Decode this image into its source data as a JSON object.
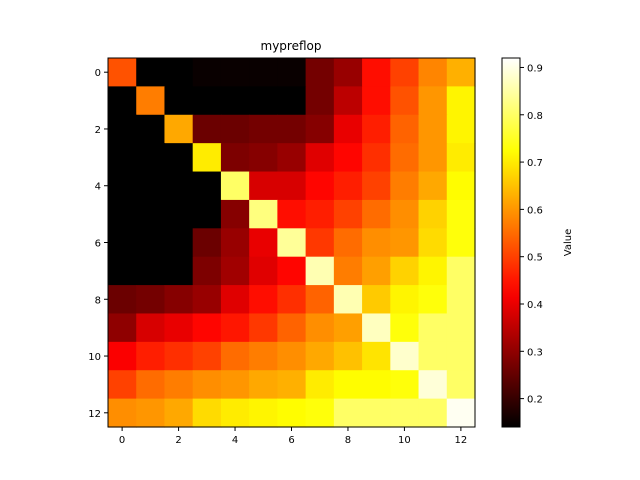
{
  "chart_data": {
    "type": "heatmap",
    "title": "mypreflop",
    "colormap": "hot",
    "colorbar_label": "Value",
    "vmin": 0.14,
    "vmax": 0.92,
    "colorbar_ticks": [
      0.2,
      0.3,
      0.4,
      0.5,
      0.6,
      0.7,
      0.8,
      0.9
    ],
    "colorbar_tick_labels": [
      "0.2",
      "0.3",
      "0.4",
      "0.5",
      "0.6",
      "0.7",
      "0.8",
      "0.9"
    ],
    "x_ticks": [
      0,
      2,
      4,
      6,
      8,
      10,
      12
    ],
    "x_tick_labels": [
      "0",
      "2",
      "4",
      "6",
      "8",
      "10",
      "12"
    ],
    "y_ticks": [
      0,
      2,
      4,
      6,
      8,
      10,
      12
    ],
    "y_tick_labels": [
      "0",
      "2",
      "4",
      "6",
      "8",
      "10",
      "12"
    ],
    "values": [
      [
        0.52,
        0.14,
        0.14,
        0.15,
        0.15,
        0.15,
        0.15,
        0.27,
        0.31,
        0.44,
        0.5,
        0.58,
        0.63
      ],
      [
        0.14,
        0.57,
        0.14,
        0.14,
        0.14,
        0.14,
        0.14,
        0.27,
        0.35,
        0.44,
        0.52,
        0.6,
        0.71
      ],
      [
        0.14,
        0.14,
        0.62,
        0.26,
        0.26,
        0.27,
        0.27,
        0.29,
        0.4,
        0.46,
        0.54,
        0.6,
        0.71
      ],
      [
        0.14,
        0.14,
        0.14,
        0.7,
        0.28,
        0.29,
        0.31,
        0.39,
        0.43,
        0.48,
        0.55,
        0.6,
        0.7
      ],
      [
        0.14,
        0.14,
        0.14,
        0.14,
        0.8,
        0.38,
        0.38,
        0.43,
        0.46,
        0.5,
        0.57,
        0.62,
        0.72
      ],
      [
        0.14,
        0.14,
        0.14,
        0.14,
        0.29,
        0.82,
        0.44,
        0.46,
        0.5,
        0.55,
        0.59,
        0.67,
        0.73
      ],
      [
        0.14,
        0.14,
        0.14,
        0.26,
        0.31,
        0.4,
        0.84,
        0.49,
        0.55,
        0.59,
        0.6,
        0.68,
        0.73
      ],
      [
        0.14,
        0.14,
        0.14,
        0.28,
        0.32,
        0.39,
        0.43,
        0.86,
        0.57,
        0.61,
        0.67,
        0.71,
        0.8
      ],
      [
        0.26,
        0.27,
        0.29,
        0.31,
        0.39,
        0.44,
        0.48,
        0.54,
        0.86,
        0.66,
        0.71,
        0.73,
        0.8
      ],
      [
        0.3,
        0.38,
        0.4,
        0.43,
        0.45,
        0.49,
        0.54,
        0.59,
        0.61,
        0.87,
        0.73,
        0.8,
        0.8
      ],
      [
        0.42,
        0.46,
        0.48,
        0.5,
        0.55,
        0.57,
        0.59,
        0.62,
        0.65,
        0.69,
        0.88,
        0.8,
        0.8
      ],
      [
        0.5,
        0.55,
        0.57,
        0.59,
        0.6,
        0.62,
        0.63,
        0.7,
        0.72,
        0.72,
        0.73,
        0.89,
        0.8
      ],
      [
        0.59,
        0.6,
        0.62,
        0.68,
        0.7,
        0.71,
        0.72,
        0.73,
        0.8,
        0.8,
        0.8,
        0.8,
        0.91
      ]
    ]
  }
}
